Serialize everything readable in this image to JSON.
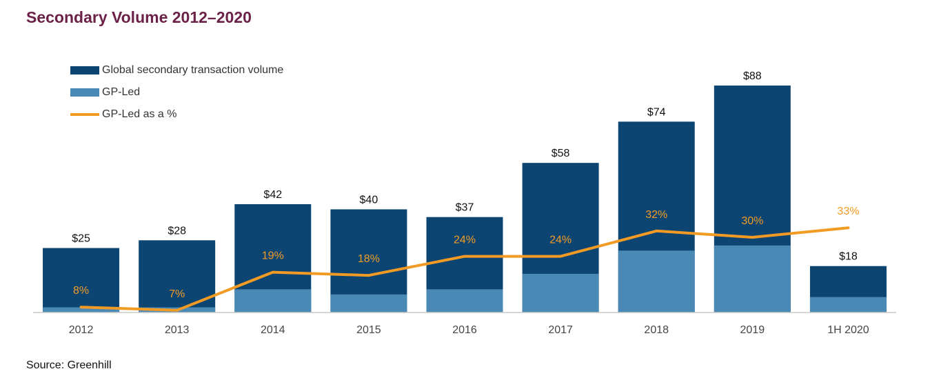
{
  "title": "Secondary Volume 2012–2020",
  "source": "Source: Greenhill",
  "colors": {
    "title": "#6b2148",
    "total": "#0c4571",
    "gp_led": "#4a89b5",
    "line": "#f29b24",
    "axis": "#c8c8c8"
  },
  "legend": [
    {
      "label": "Global secondary transaction volume",
      "type": "bar",
      "color": "#0c4571"
    },
    {
      "label": "GP-Led",
      "type": "bar",
      "color": "#4a89b5"
    },
    {
      "label": "GP-Led as a %",
      "type": "line",
      "color": "#f29b24"
    }
  ],
  "chart_data": {
    "type": "bar",
    "categories": [
      "2012",
      "2013",
      "2014",
      "2015",
      "2016",
      "2017",
      "2018",
      "2019",
      "1H 2020"
    ],
    "series": [
      {
        "name": "Global secondary transaction volume",
        "values": [
          25,
          28,
          42,
          40,
          37,
          58,
          74,
          88,
          18
        ],
        "labels": [
          "$25",
          "$28",
          "$42",
          "$40",
          "$37",
          "$58",
          "$74",
          "$88",
          "$18"
        ]
      },
      {
        "name": "GP-Led",
        "values": [
          2,
          2,
          9,
          7,
          9,
          15,
          24,
          26,
          6
        ]
      },
      {
        "name": "GP-Led as a %",
        "type": "line",
        "values": [
          8,
          7,
          19,
          18,
          24,
          24,
          32,
          30,
          33
        ],
        "labels": [
          "8%",
          "7%",
          "19%",
          "18%",
          "24%",
          "24%",
          "32%",
          "30%",
          "33%"
        ]
      }
    ],
    "ylim": [
      0,
      100
    ],
    "ylim_pct": [
      -5,
      70
    ],
    "grid": false,
    "legend_position": "top-left"
  }
}
